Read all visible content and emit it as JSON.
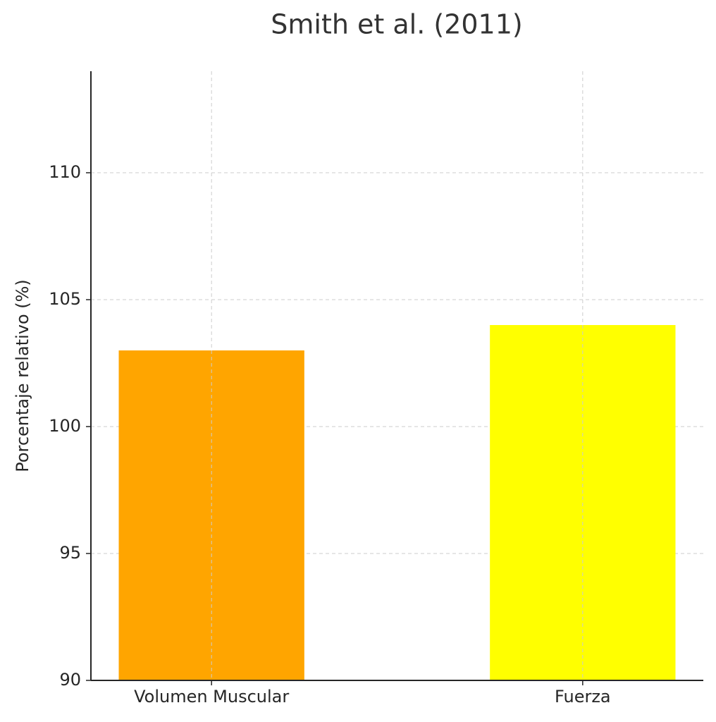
{
  "chart_data": {
    "type": "bar",
    "title": "Smith et al. (2011)",
    "y_label": "Porcentaje relativo (%)",
    "categories": [
      "Volumen Muscular",
      "Fuerza"
    ],
    "values": [
      103,
      104
    ],
    "colors": [
      "#ffa500",
      "#ffff00"
    ],
    "ylim": [
      90,
      114
    ],
    "yticks": [
      90,
      95,
      100,
      105,
      110
    ],
    "grid": true
  }
}
